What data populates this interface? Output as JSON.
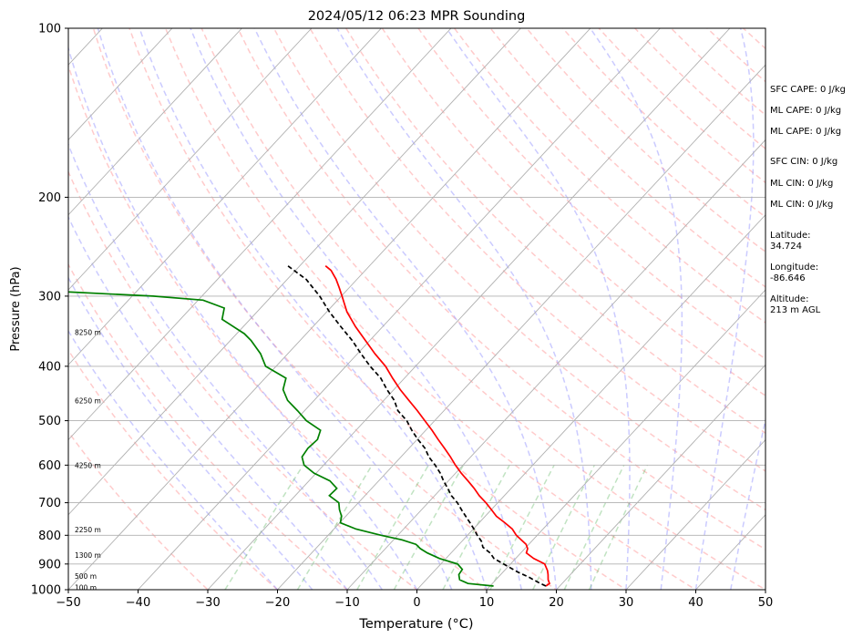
{
  "chart_data": {
    "type": "line",
    "title": "2024/05/12 06:23 MPR Sounding",
    "xlabel": "Temperature (°C)",
    "ylabel": "Pressure (hPa)",
    "xlim": [
      -50,
      50
    ],
    "ylim": [
      1000,
      100
    ],
    "y_scale": "log",
    "skew": "skew-T",
    "grid": true,
    "x_ticks": [
      -50,
      -40,
      -30,
      -20,
      -10,
      0,
      10,
      20,
      30,
      40,
      50
    ],
    "y_ticks": [
      1000,
      900,
      800,
      700,
      600,
      500,
      400,
      300,
      200,
      100
    ],
    "height_labels": [
      {
        "text": "100 m",
        "p": 990
      },
      {
        "text": "500 m",
        "p": 945
      },
      {
        "text": "1300 m",
        "p": 868
      },
      {
        "text": "2250 m",
        "p": 782
      },
      {
        "text": "4250 m",
        "p": 600
      },
      {
        "text": "6250 m",
        "p": 460
      },
      {
        "text": "8250 m",
        "p": 348
      }
    ],
    "series": [
      {
        "role": "temperature",
        "color": "#ff0000",
        "p": [
          985,
          975,
          960,
          940,
          925,
          900,
          880,
          860,
          845,
          830,
          815,
          800,
          780,
          760,
          740,
          720,
          700,
          680,
          660,
          640,
          620,
          600,
          580,
          560,
          540,
          520,
          500,
          480,
          460,
          440,
          420,
          400,
          380,
          360,
          340,
          320,
          300,
          290,
          280,
          270,
          265
        ],
        "t": [
          18.0,
          18.2,
          17.5,
          16.8,
          16.2,
          14.9,
          12.6,
          10.8,
          10.4,
          9.6,
          8.3,
          7.0,
          5.6,
          3.7,
          1.6,
          0.0,
          -1.7,
          -3.6,
          -5.3,
          -7.2,
          -9.2,
          -11.1,
          -12.9,
          -14.9,
          -17.0,
          -19.1,
          -21.4,
          -23.8,
          -26.4,
          -29.1,
          -31.7,
          -34.3,
          -37.5,
          -40.6,
          -43.9,
          -47.1,
          -49.9,
          -51.4,
          -53.0,
          -54.9,
          -56.3
        ]
      },
      {
        "role": "dewpoint",
        "color": "#008000",
        "p": [
          985,
          975,
          960,
          940,
          920,
          900,
          880,
          860,
          845,
          830,
          815,
          800,
          780,
          760,
          740,
          720,
          700,
          680,
          660,
          640,
          620,
          600,
          580,
          560,
          540,
          520,
          500,
          480,
          460,
          440,
          420,
          400,
          380,
          360,
          350,
          330,
          315,
          305,
          300,
          295,
          290
        ],
        "t": [
          10.5,
          6.5,
          4.8,
          4.0,
          3.8,
          2.4,
          -0.9,
          -3.4,
          -5.0,
          -6.2,
          -8.8,
          -12.4,
          -16.8,
          -19.9,
          -20.6,
          -21.8,
          -22.8,
          -25.1,
          -25.0,
          -27.0,
          -30.3,
          -32.8,
          -34.2,
          -34.5,
          -34.3,
          -35.1,
          -38.4,
          -41.0,
          -43.8,
          -45.9,
          -47.0,
          -51.5,
          -53.9,
          -57.0,
          -58.9,
          -64.0,
          -65.2,
          -69.3,
          -77.0,
          -89.5,
          -100.0
        ]
      },
      {
        "role": "parcel",
        "color": "#000000",
        "dashed": true,
        "p": [
          985,
          970,
          950,
          930,
          900,
          880,
          860,
          840,
          820,
          800,
          780,
          760,
          740,
          720,
          700,
          680,
          660,
          640,
          620,
          600,
          580,
          560,
          540,
          520,
          500,
          480,
          460,
          440,
          420,
          400,
          380,
          360,
          340,
          320,
          300,
          280,
          265
        ],
        "t": [
          18.0,
          16.4,
          14.4,
          12.1,
          9.0,
          6.9,
          5.6,
          3.8,
          2.8,
          1.4,
          0.1,
          -1.3,
          -2.8,
          -4.3,
          -5.8,
          -7.6,
          -9.1,
          -10.7,
          -12.2,
          -14.0,
          -16.0,
          -17.7,
          -19.9,
          -22.0,
          -24.0,
          -26.6,
          -28.5,
          -31.0,
          -33.4,
          -36.5,
          -39.5,
          -42.5,
          -46.0,
          -49.6,
          -53.1,
          -57.3,
          -61.7
        ]
      }
    ]
  },
  "info": {
    "sfc_cape": "SFC CAPE: 0 J/kg",
    "ml_cape_1": "ML CAPE: 0 J/kg",
    "ml_cape_2": "ML CAPE: 0 J/kg",
    "sfc_cin": "SFC CIN: 0 J/kg",
    "ml_cin_1": "ML CIN: 0 J/kg",
    "ml_cin_2": "ML CIN: 0 J/kg",
    "latitude": "Latitude:\n34.724",
    "longitude": "Longitude:\n-86.646",
    "altitude": "Altitude:\n213 m AGL"
  }
}
